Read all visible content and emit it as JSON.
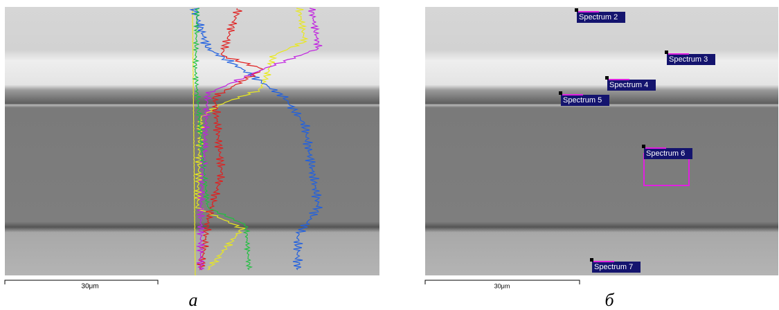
{
  "panels": [
    {
      "label": "a",
      "scale_bar": "30μm"
    },
    {
      "label": "б",
      "scale_bar": "30μm",
      "spectra": [
        "Spectrum 2",
        "Spectrum 3",
        "Spectrum 4",
        "Spectrum 5",
        "Spectrum 6",
        "Spectrum 7"
      ]
    }
  ]
}
